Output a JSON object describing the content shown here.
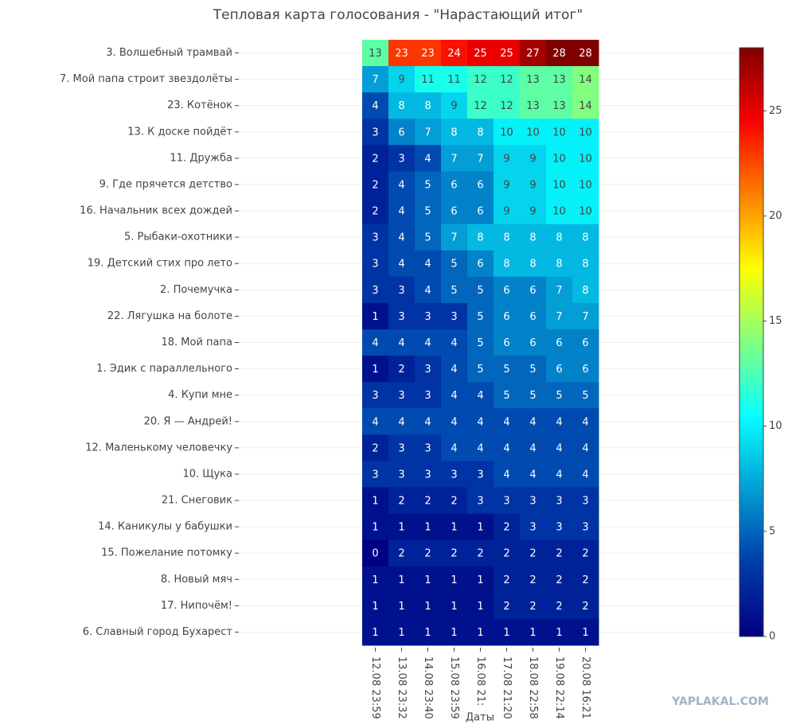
{
  "chart_data": {
    "type": "heatmap",
    "title": "Тепловая карта голосования - \"Нарастающий итог\"",
    "x_label": "Даты",
    "watermark": "YAPLAKAL.COM",
    "x": [
      "12.08 23:59",
      "13.08 23:32",
      "14.08 23:40",
      "15.08 23:59",
      "16.08 21:",
      "17.08 21:20",
      "18.08 22:58",
      "19.08 22:14",
      "20.08 16:21"
    ],
    "y": [
      "3. Волшебный трамвай",
      "7. Мой папа строит звездолёты",
      "23. Котёнок",
      "13. К доске пойдёт",
      "11. Дружба",
      "9. Где прячется детство",
      "16. Начальник всех дождей",
      "5. Рыбаки-охотники",
      "19. Детский стих про лето",
      "2. Почемучка",
      "22. Лягушка на болоте",
      "18. Мой папа",
      "1. Эдик с параллельного",
      "4. Купи мне",
      "20. Я — Андрей!",
      "12. Маленькому человечку",
      "10. Щука",
      "21. Снеговик",
      "14. Каникулы у бабушки",
      "15. Пожелание потомку",
      "8. Новый мяч",
      "17. Нипочём!",
      "6. Славный город Бухарест"
    ],
    "z": [
      [
        13,
        23,
        23,
        24,
        25,
        25,
        27,
        28,
        28
      ],
      [
        7,
        9,
        11,
        11,
        12,
        12,
        13,
        13,
        14
      ],
      [
        4,
        8,
        8,
        9,
        12,
        12,
        13,
        13,
        14
      ],
      [
        3,
        6,
        7,
        8,
        8,
        10,
        10,
        10,
        10
      ],
      [
        2,
        3,
        4,
        7,
        7,
        9,
        9,
        10,
        10
      ],
      [
        2,
        4,
        5,
        6,
        6,
        9,
        9,
        10,
        10
      ],
      [
        2,
        4,
        5,
        6,
        6,
        9,
        9,
        10,
        10
      ],
      [
        3,
        4,
        5,
        7,
        8,
        8,
        8,
        8,
        8
      ],
      [
        3,
        4,
        4,
        5,
        6,
        8,
        8,
        8,
        8
      ],
      [
        3,
        3,
        4,
        5,
        5,
        6,
        6,
        7,
        8
      ],
      [
        1,
        3,
        3,
        3,
        5,
        6,
        6,
        7,
        7
      ],
      [
        4,
        4,
        4,
        4,
        5,
        6,
        6,
        6,
        6
      ],
      [
        1,
        2,
        3,
        4,
        5,
        5,
        5,
        6,
        6
      ],
      [
        3,
        3,
        3,
        4,
        4,
        5,
        5,
        5,
        5
      ],
      [
        4,
        4,
        4,
        4,
        4,
        4,
        4,
        4,
        4
      ],
      [
        2,
        3,
        3,
        4,
        4,
        4,
        4,
        4,
        4
      ],
      [
        3,
        3,
        3,
        3,
        3,
        4,
        4,
        4,
        4
      ],
      [
        1,
        2,
        2,
        2,
        3,
        3,
        3,
        3,
        3
      ],
      [
        1,
        1,
        1,
        1,
        1,
        2,
        3,
        3,
        3
      ],
      [
        0,
        2,
        2,
        2,
        2,
        2,
        2,
        2,
        2
      ],
      [
        1,
        1,
        1,
        1,
        1,
        2,
        2,
        2,
        2
      ],
      [
        1,
        1,
        1,
        1,
        1,
        2,
        2,
        2,
        2
      ],
      [
        1,
        1,
        1,
        1,
        1,
        1,
        1,
        1,
        1
      ]
    ],
    "zlim": [
      0,
      28
    ],
    "zticks": [
      0,
      5,
      10,
      15,
      20,
      25
    ],
    "colorscale": [
      [
        0,
        "#000083"
      ],
      [
        0.125,
        "#003caa"
      ],
      [
        0.375,
        "#05ffff"
      ],
      [
        0.625,
        "#ffff00"
      ],
      [
        0.875,
        "#fa0000"
      ],
      [
        1,
        "#800000"
      ]
    ]
  }
}
